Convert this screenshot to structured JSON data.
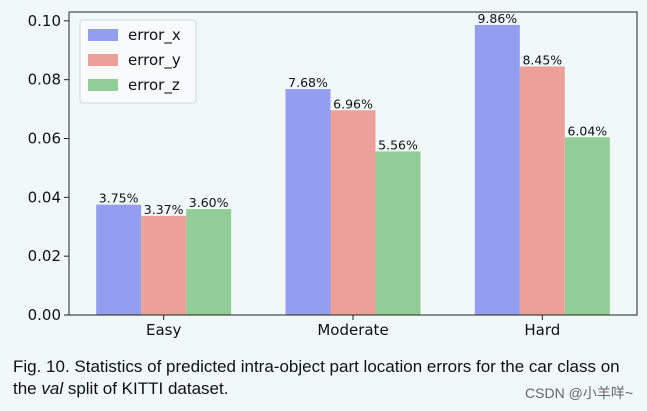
{
  "chart_data": {
    "type": "bar",
    "categories": [
      "Easy",
      "Moderate",
      "Hard"
    ],
    "series": [
      {
        "name": "error_x",
        "values": [
          0.0375,
          0.0768,
          0.0986
        ],
        "labels": [
          "3.75%",
          "7.68%",
          "9.86%"
        ],
        "color": "#939ef0"
      },
      {
        "name": "error_y",
        "values": [
          0.0337,
          0.0696,
          0.0845
        ],
        "labels": [
          "3.37%",
          "6.96%",
          "8.45%"
        ],
        "color": "#eca098"
      },
      {
        "name": "error_z",
        "values": [
          0.036,
          0.0556,
          0.0604
        ],
        "labels": [
          "3.60%",
          "5.56%",
          "6.04%"
        ],
        "color": "#92cc96"
      }
    ],
    "ylim": [
      0,
      0.103
    ],
    "yticks": [
      "0.00",
      "0.02",
      "0.04",
      "0.06",
      "0.08",
      "0.10"
    ],
    "ytick_values": [
      0,
      0.02,
      0.04,
      0.06,
      0.08,
      0.1
    ],
    "legend_position": "top-left",
    "grid": false
  },
  "caption": {
    "prefix": "Fig. 10. Statistics of predicted intra-object part location errors for the car class on the ",
    "italic": "val",
    "suffix": " split of KITTI dataset."
  },
  "watermark": "CSDN @小羊咩~"
}
